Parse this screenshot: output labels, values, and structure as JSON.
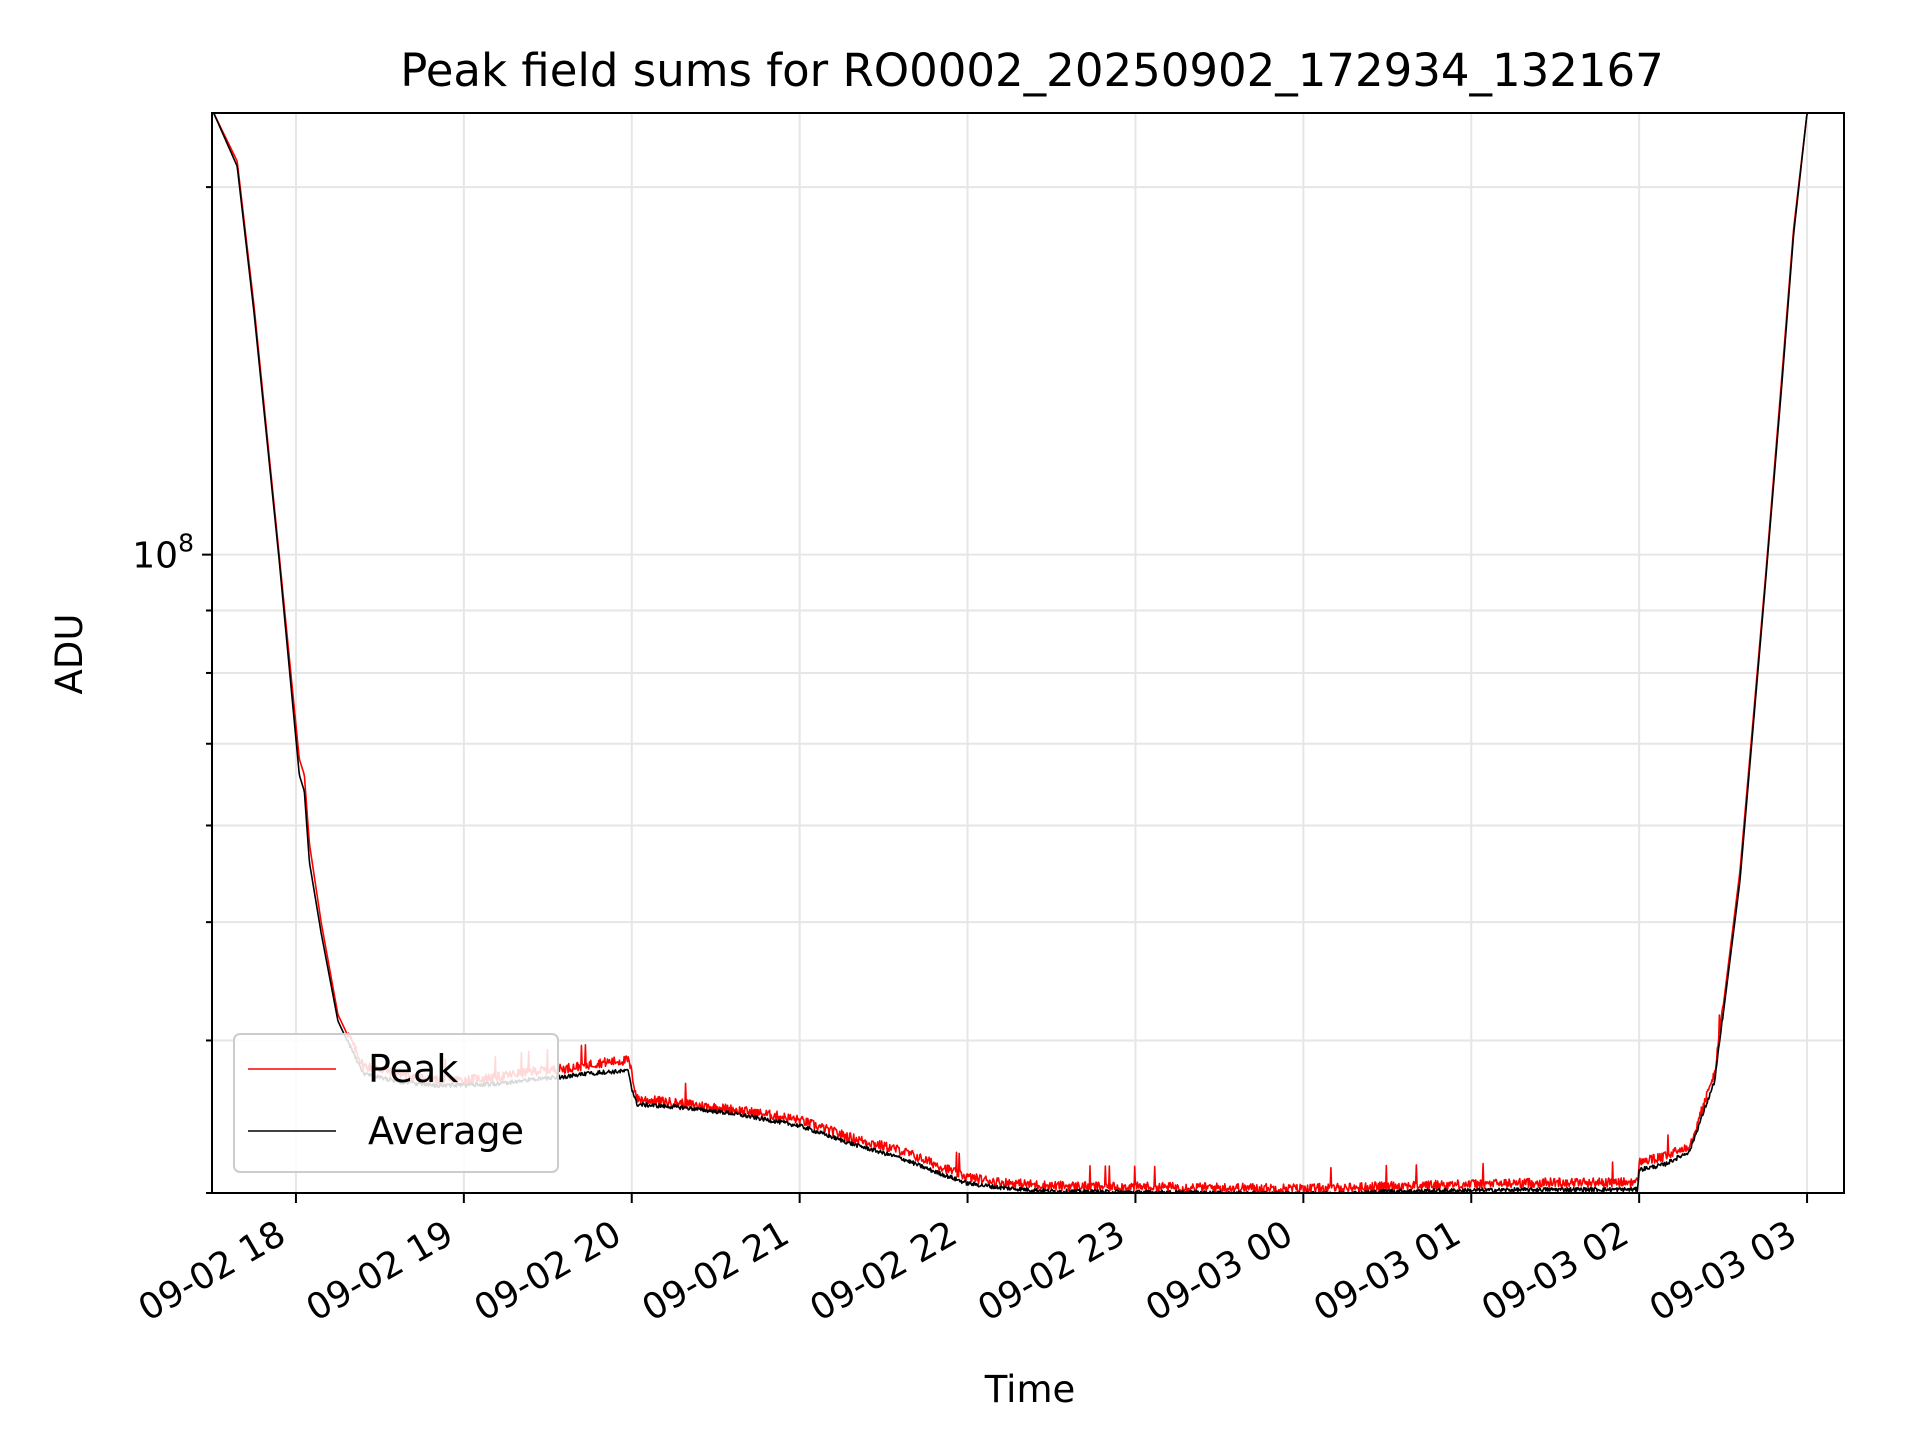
{
  "chart_data": {
    "type": "line",
    "title": "Peak field sums for RO0002_20250902_172934_132167",
    "xlabel": "Time",
    "ylabel": "ADU",
    "yscale": "log",
    "ytick_labels": [
      {
        "base": "10",
        "exp": "8",
        "value": 100000000
      }
    ],
    "ylim": [
      30000000,
      230000000
    ],
    "xlim": [
      -0.5,
      9.22
    ],
    "grid": true,
    "xticks": [
      {
        "label": "09-02 18",
        "value": 0
      },
      {
        "label": "09-02 19",
        "value": 1
      },
      {
        "label": "09-02 20",
        "value": 2
      },
      {
        "label": "09-02 21",
        "value": 3
      },
      {
        "label": "09-02 22",
        "value": 4
      },
      {
        "label": "09-02 23",
        "value": 5
      },
      {
        "label": "09-03 00",
        "value": 6
      },
      {
        "label": "09-03 01",
        "value": 7
      },
      {
        "label": "09-03 02",
        "value": 8
      },
      {
        "label": "09-03 03",
        "value": 9
      }
    ],
    "legend_position": "lower-left",
    "series": [
      {
        "name": "Peak",
        "color": "#ff0000",
        "description": "Peak value, sits slightly above average with frequent spikes",
        "x": [
          -0.49,
          -0.35,
          -0.25,
          -0.1,
          0.02,
          0.05,
          0.08,
          0.15,
          0.25,
          0.4,
          0.6,
          0.8,
          1.0,
          1.2,
          1.4,
          1.6,
          1.8,
          1.98,
          2.0,
          2.03,
          2.3,
          2.6,
          2.85,
          3.0,
          3.3,
          3.6,
          3.8,
          4.0,
          4.2,
          4.5,
          5.0,
          5.5,
          6.0,
          6.3,
          6.5,
          7.0,
          7.5,
          7.99,
          8.0,
          8.15,
          8.3,
          8.45,
          8.6,
          8.75,
          8.85,
          8.92,
          9.0,
          9.05
        ],
        "y": [
          230000000,
          210000000,
          160000000,
          100000000,
          68000000,
          66000000,
          58000000,
          50000000,
          42000000,
          38000000,
          37500000,
          37000000,
          37000000,
          37200000,
          37600000,
          37800000,
          38200000,
          38400000,
          37500000,
          35700000,
          35400000,
          35000000,
          34600000,
          34300000,
          33200000,
          32400000,
          31600000,
          30800000,
          30500000,
          30300000,
          30250000,
          30200000,
          30150000,
          30200000,
          30300000,
          30400000,
          30500000,
          30500000,
          31700000,
          32000000,
          32700000,
          37500000,
          55000000,
          95000000,
          140000000,
          185000000,
          230000000,
          230000000
        ]
      },
      {
        "name": "Average",
        "color": "#000000",
        "description": "Average value",
        "x": [
          -0.49,
          -0.35,
          -0.25,
          -0.1,
          0.02,
          0.05,
          0.08,
          0.15,
          0.25,
          0.4,
          0.6,
          0.8,
          1.0,
          1.2,
          1.4,
          1.6,
          1.8,
          1.98,
          2.0,
          2.03,
          2.3,
          2.6,
          2.85,
          3.0,
          3.3,
          3.6,
          3.8,
          4.0,
          4.2,
          4.5,
          5.0,
          5.5,
          6.0,
          6.3,
          6.5,
          7.0,
          7.5,
          7.99,
          8.0,
          8.15,
          8.3,
          8.45,
          8.6,
          8.75,
          8.85,
          8.92,
          9.0,
          9.05
        ],
        "y": [
          230000000,
          208000000,
          158000000,
          99000000,
          66000000,
          64000000,
          56000000,
          49000000,
          41500000,
          37500000,
          37000000,
          36700000,
          36700000,
          36800000,
          37100000,
          37300000,
          37600000,
          37700000,
          36500000,
          35400000,
          35200000,
          34800000,
          34300000,
          34000000,
          32900000,
          32000000,
          31200000,
          30500000,
          30250000,
          30050000,
          30000000,
          29950000,
          29900000,
          29950000,
          30050000,
          30100000,
          30150000,
          30150000,
          31300000,
          31600000,
          32400000,
          37000000,
          54000000,
          94000000,
          138000000,
          183000000,
          230000000,
          230000000
        ]
      }
    ]
  }
}
